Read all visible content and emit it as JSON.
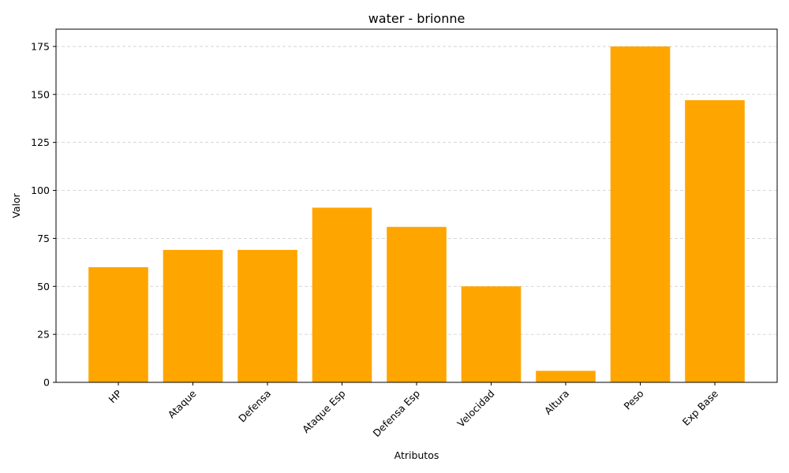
{
  "chart_data": {
    "type": "bar",
    "title": "water - brionne",
    "xlabel": "Atributos",
    "ylabel": "Valor",
    "categories": [
      "HP",
      "Ataque",
      "Defensa",
      "Ataque Esp",
      "Defensa Esp",
      "Velocidad",
      "Altura",
      "Peso",
      "Exp Base"
    ],
    "values": [
      60,
      69,
      69,
      91,
      81,
      50,
      6,
      175,
      147
    ],
    "ylim": [
      0,
      184
    ],
    "yticks": [
      0,
      25,
      50,
      75,
      100,
      125,
      150,
      175
    ],
    "grid": "y-dashed",
    "bar_color": "#ffa500",
    "x_tick_rotation": 45
  }
}
